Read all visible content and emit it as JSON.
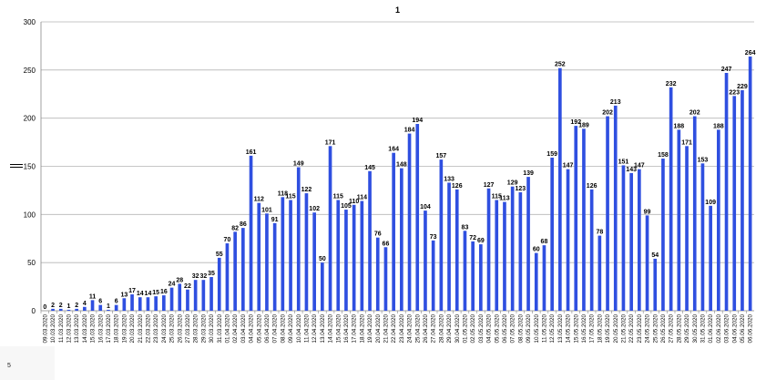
{
  "page_number": "5",
  "chart_data": {
    "type": "bar",
    "title": "1",
    "xlabel": "",
    "ylabel": "",
    "ylim": [
      0,
      300
    ],
    "yticks": [
      0,
      50,
      100,
      150,
      200,
      250,
      300
    ],
    "grid": true,
    "bar_color": "#2f4fe0",
    "categories": [
      "09.03.2020",
      "10.03.2020",
      "11.03.2020",
      "12.03.2020",
      "13.03.2020",
      "14.03.2020",
      "15.03.2020",
      "16.03.2020",
      "17.03.2020",
      "18.03.2020",
      "19.03.2020",
      "20.03.2020",
      "21.03.2020",
      "22.03.2020",
      "23.03.2020",
      "24.03.2020",
      "25.03.2020",
      "26.03.2020",
      "27.03.2020",
      "28.03.2020",
      "29.03.2020",
      "30.03.2020",
      "31.03.2020",
      "01.04.2020",
      "02.04.2020",
      "03.04.2020",
      "04.04.2020",
      "05.04.2020",
      "06.04.2020",
      "07.04.2020",
      "08.04.2020",
      "09.04.2020",
      "10.04.2020",
      "11.04.2020",
      "12.04.2020",
      "13.04.2020",
      "14.04.2020",
      "15.04.2020",
      "16.04.2020",
      "17.04.2020",
      "18.04.2020",
      "19.04.2020",
      "20.04.2020",
      "21.04.2020",
      "22.04.2020",
      "23.04.2020",
      "24.04.2020",
      "25.04.2020",
      "26.04.2020",
      "27.04.2020",
      "28.04.2020",
      "29.04.2020",
      "30.04.2020",
      "01.05.2020",
      "02.05.2020",
      "03.05.2020",
      "04.05.2020",
      "05.05.2020",
      "06.05.2020",
      "07.05.2020",
      "08.05.2020",
      "09.05.2020",
      "10.05.2020",
      "11.05.2020",
      "12.05.2020",
      "13.05.2020",
      "14.05.2020",
      "15.05.2020",
      "16.05.2020",
      "17.05.2020",
      "18.05.2020",
      "19.05.2020",
      "20.05.2020",
      "21.05.2020",
      "22.05.2020",
      "23.05.2020",
      "24.05.2020",
      "25.05.2020",
      "26.05.2020",
      "27.05.2020",
      "28.05.2020",
      "29.05.2020",
      "30.05.2020",
      "31.05.2020",
      "01.06.2020",
      "02.06.2020",
      "03.06.2020",
      "04.06.2020",
      "05.06.2020",
      "06.06.2020"
    ],
    "values": [
      0,
      2,
      2,
      1,
      2,
      4,
      11,
      6,
      1,
      6,
      13,
      17,
      14,
      14,
      15,
      16,
      24,
      28,
      22,
      32,
      32,
      35,
      55,
      70,
      82,
      86,
      161,
      112,
      101,
      91,
      118,
      115,
      149,
      122,
      102,
      50,
      171,
      115,
      105,
      110,
      114,
      145,
      76,
      66,
      164,
      148,
      184,
      194,
      104,
      73,
      157,
      133,
      126,
      83,
      72,
      69,
      127,
      115,
      113,
      129,
      123,
      139,
      60,
      68,
      159,
      252,
      147,
      192,
      189,
      126,
      78,
      202,
      213,
      151,
      143,
      147,
      99,
      54,
      158,
      232,
      188,
      171,
      202,
      153,
      109,
      188,
      247,
      223,
      229,
      264
    ]
  }
}
